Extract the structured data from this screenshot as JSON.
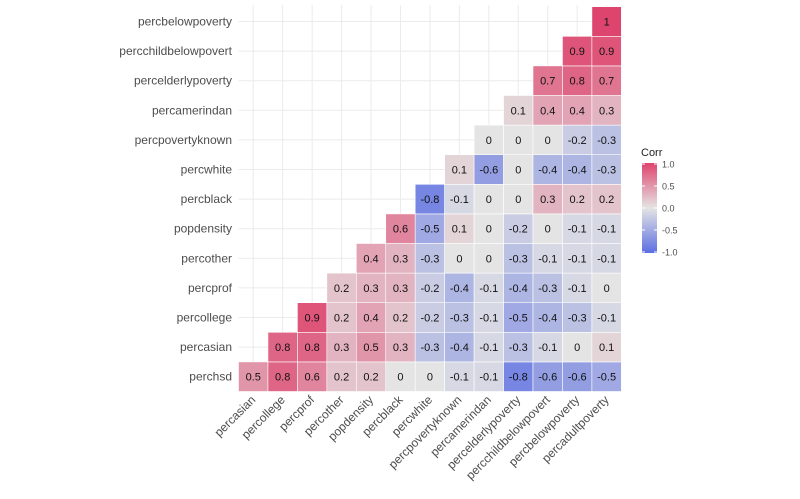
{
  "chart_data": {
    "type": "heatmap",
    "x_labels": [
      "percasian",
      "percollege",
      "percprof",
      "percother",
      "popdensity",
      "percblack",
      "percwhite",
      "percpovertyknown",
      "percamerindan",
      "percelderlypoverty",
      "percchildbelowpovert",
      "percbelowpoverty",
      "percadultpoverty"
    ],
    "y_labels": [
      "perchsd",
      "percasian",
      "percollege",
      "percprof",
      "percother",
      "popdensity",
      "percblack",
      "percwhite",
      "percpovertyknown",
      "percamerindan",
      "percelderlypoverty",
      "percchildbelowpovert",
      "percbelowpoverty"
    ],
    "values": [
      [
        0.5,
        0.8,
        0.6,
        0.2,
        0.2,
        0,
        0,
        -0.1,
        -0.1,
        -0.8,
        -0.6,
        -0.6,
        -0.5
      ],
      [
        null,
        0.8,
        0.8,
        0.3,
        0.5,
        0.3,
        -0.3,
        -0.4,
        -0.1,
        -0.3,
        -0.1,
        0,
        0.1
      ],
      [
        null,
        null,
        0.9,
        0.2,
        0.4,
        0.2,
        -0.2,
        -0.3,
        -0.1,
        -0.5,
        -0.4,
        -0.3,
        -0.1
      ],
      [
        null,
        null,
        null,
        0.2,
        0.3,
        0.3,
        -0.2,
        -0.4,
        -0.1,
        -0.4,
        -0.3,
        -0.1,
        0
      ],
      [
        null,
        null,
        null,
        null,
        0.4,
        0.3,
        -0.3,
        0,
        0,
        -0.3,
        -0.1,
        -0.1,
        -0.1
      ],
      [
        null,
        null,
        null,
        null,
        null,
        0.6,
        -0.5,
        0.1,
        0,
        -0.2,
        0,
        -0.1,
        -0.1
      ],
      [
        null,
        null,
        null,
        null,
        null,
        null,
        -0.8,
        -0.1,
        0,
        0,
        0.3,
        0.2,
        0.2
      ],
      [
        null,
        null,
        null,
        null,
        null,
        null,
        null,
        0.1,
        -0.6,
        0,
        -0.4,
        -0.4,
        -0.3
      ],
      [
        null,
        null,
        null,
        null,
        null,
        null,
        null,
        null,
        0,
        0,
        0,
        -0.2,
        -0.3
      ],
      [
        null,
        null,
        null,
        null,
        null,
        null,
        null,
        null,
        null,
        0.1,
        0.4,
        0.4,
        0.3
      ],
      [
        null,
        null,
        null,
        null,
        null,
        null,
        null,
        null,
        null,
        null,
        0.7,
        0.8,
        0.7
      ],
      [
        null,
        null,
        null,
        null,
        null,
        null,
        null,
        null,
        null,
        null,
        null,
        0.9,
        0.9
      ],
      [
        null,
        null,
        null,
        null,
        null,
        null,
        null,
        null,
        null,
        null,
        null,
        null,
        1
      ]
    ],
    "legend": {
      "title": "Corr",
      "ticks": [
        "1.0",
        "0.5",
        "0.0",
        "-0.5",
        "-1.0"
      ],
      "position": "right"
    },
    "color_scale": {
      "low": "#5B6EE1",
      "mid": "#E4E4E4",
      "high": "#DE456E",
      "range": [
        -1,
        1
      ]
    },
    "grid": true
  }
}
